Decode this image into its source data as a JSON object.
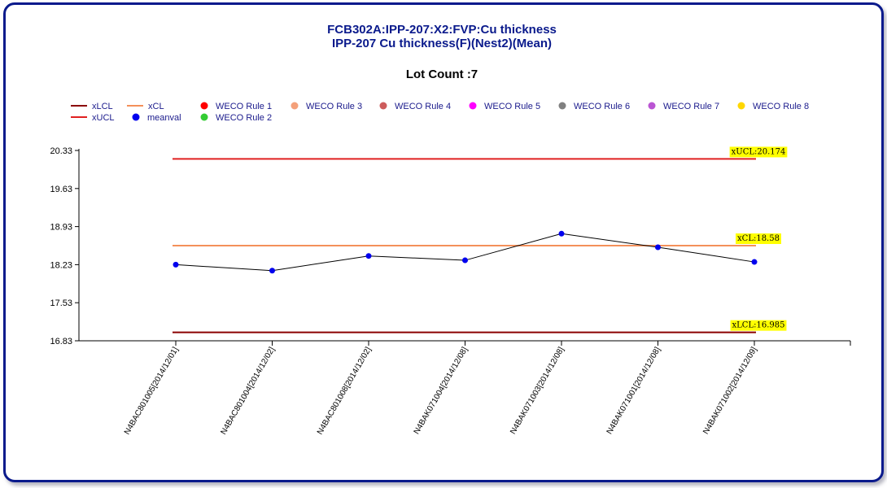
{
  "chart_data": {
    "type": "line",
    "title": "FCB302A:IPP-207:X2:FVP:Cu thickness",
    "subtitle": "IPP-207 Cu thickness(F)(Nest2)(Mean)",
    "lot_count_label": "Lot Count :7",
    "xlabel": "",
    "ylabel": "",
    "ylim": [
      16.83,
      20.33
    ],
    "yticks": [
      "20.33",
      "19.63",
      "18.93",
      "18.23",
      "17.53",
      "16.83"
    ],
    "categories": [
      "N4BAC801005[2014/12/01]",
      "N4BAC801004[2014/12/02]",
      "N4BAC801008[2014/12/02]",
      "N4BAK071004[2014/12/08]",
      "N4BAK071003[2014/12/08]",
      "N4BAK071001[2014/12/08]",
      "N4BAK071002[2014/12/09]"
    ],
    "series": [
      {
        "name": "meanval",
        "color": "#0000ee",
        "values": [
          18.23,
          18.12,
          18.39,
          18.31,
          18.8,
          18.55,
          18.28
        ]
      }
    ],
    "control_limits": [
      {
        "name": "xUCL",
        "value": 20.174,
        "label": "xUCL:20.174",
        "color": "#e02020"
      },
      {
        "name": "xCL",
        "value": 18.58,
        "label": "xCL:18.58",
        "color": "#f4905a"
      },
      {
        "name": "xLCL",
        "value": 16.985,
        "label": "xLCL:16.985",
        "color": "#8b0000"
      }
    ],
    "legend": {
      "placement": "top",
      "items": [
        {
          "name": "xLCL",
          "kind": "line",
          "color": "#8b0000"
        },
        {
          "name": "xCL",
          "kind": "line",
          "color": "#f4905a"
        },
        {
          "name": "WECO Rule 1",
          "kind": "dot",
          "color": "#ff0000"
        },
        {
          "name": "WECO Rule 3",
          "kind": "dot",
          "color": "#f4a07a"
        },
        {
          "name": "WECO Rule 4",
          "kind": "dot",
          "color": "#cd5c5c"
        },
        {
          "name": "WECO Rule 5",
          "kind": "dot",
          "color": "#ff00ff"
        },
        {
          "name": "WECO Rule 6",
          "kind": "dot",
          "color": "#808080"
        },
        {
          "name": "WECO Rule 7",
          "kind": "dot",
          "color": "#ba55d3"
        },
        {
          "name": "WECO Rule 8",
          "kind": "dot",
          "color": "#ffd700"
        },
        {
          "name": "xUCL",
          "kind": "line",
          "color": "#e02020"
        },
        {
          "name": "meanval",
          "kind": "dot",
          "color": "#0000ee"
        },
        {
          "name": "WECO Rule 2",
          "kind": "dot",
          "color": "#33cc33"
        }
      ]
    },
    "grid": false
  }
}
